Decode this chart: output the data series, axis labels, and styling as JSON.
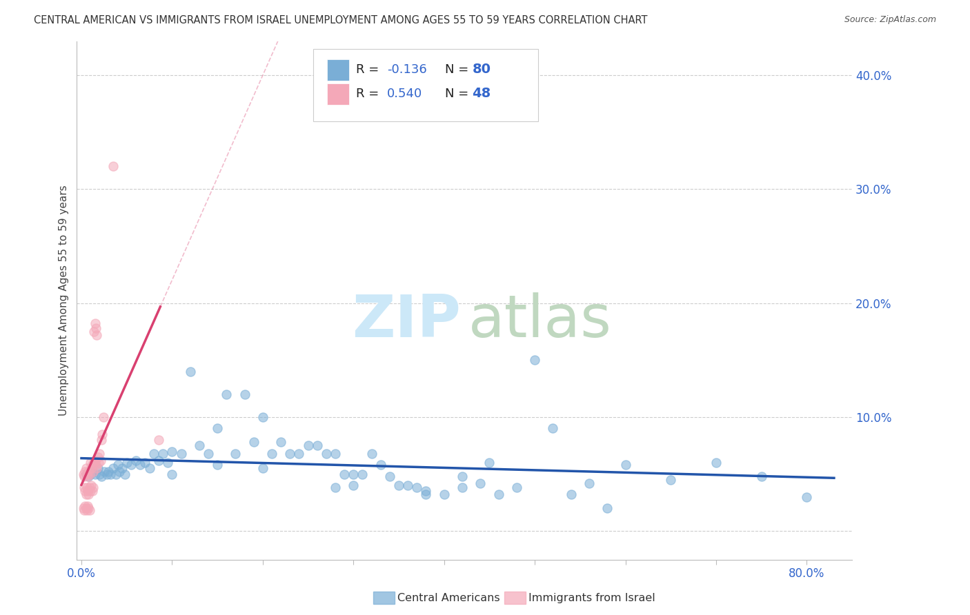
{
  "title": "CENTRAL AMERICAN VS IMMIGRANTS FROM ISRAEL UNEMPLOYMENT AMONG AGES 55 TO 59 YEARS CORRELATION CHART",
  "source": "Source: ZipAtlas.com",
  "ylabel": "Unemployment Among Ages 55 to 59 years",
  "xlim": [
    -0.005,
    0.85
  ],
  "ylim": [
    -0.025,
    0.43
  ],
  "xticks": [
    0.0,
    0.1,
    0.2,
    0.3,
    0.4,
    0.5,
    0.6,
    0.7,
    0.8
  ],
  "xticklabels": [
    "0.0%",
    "",
    "",
    "",
    "",
    "",
    "",
    "",
    "80.0%"
  ],
  "yticks": [
    0.0,
    0.1,
    0.2,
    0.3,
    0.4
  ],
  "yticklabels": [
    "",
    "10.0%",
    "20.0%",
    "30.0%",
    "40.0%"
  ],
  "grid_color": "#cccccc",
  "blue_color": "#7aaed6",
  "pink_color": "#f4a8b8",
  "blue_line_color": "#2255aa",
  "pink_line_color": "#d94070",
  "blue_R": -0.136,
  "blue_N": 80,
  "pink_R": 0.54,
  "pink_N": 48,
  "legend_label_blue": "Central Americans",
  "legend_label_pink": "Immigrants from Israel",
  "blue_scatter_x": [
    0.005,
    0.008,
    0.01,
    0.012,
    0.015,
    0.018,
    0.02,
    0.022,
    0.025,
    0.028,
    0.03,
    0.032,
    0.035,
    0.038,
    0.04,
    0.042,
    0.045,
    0.048,
    0.05,
    0.055,
    0.06,
    0.065,
    0.07,
    0.075,
    0.08,
    0.085,
    0.09,
    0.095,
    0.1,
    0.11,
    0.12,
    0.13,
    0.14,
    0.15,
    0.16,
    0.17,
    0.18,
    0.19,
    0.2,
    0.21,
    0.22,
    0.23,
    0.24,
    0.25,
    0.26,
    0.27,
    0.28,
    0.29,
    0.3,
    0.31,
    0.32,
    0.33,
    0.34,
    0.35,
    0.36,
    0.37,
    0.38,
    0.4,
    0.42,
    0.44,
    0.46,
    0.48,
    0.5,
    0.52,
    0.54,
    0.56,
    0.58,
    0.6,
    0.65,
    0.7,
    0.75,
    0.8,
    0.42,
    0.45,
    0.38,
    0.3,
    0.28,
    0.2,
    0.15,
    0.1
  ],
  "blue_scatter_y": [
    0.05,
    0.048,
    0.05,
    0.052,
    0.05,
    0.055,
    0.05,
    0.048,
    0.052,
    0.05,
    0.052,
    0.05,
    0.055,
    0.05,
    0.058,
    0.052,
    0.055,
    0.05,
    0.06,
    0.058,
    0.062,
    0.058,
    0.06,
    0.055,
    0.068,
    0.062,
    0.068,
    0.06,
    0.07,
    0.068,
    0.14,
    0.075,
    0.068,
    0.09,
    0.12,
    0.068,
    0.12,
    0.078,
    0.1,
    0.068,
    0.078,
    0.068,
    0.068,
    0.075,
    0.075,
    0.068,
    0.068,
    0.05,
    0.05,
    0.05,
    0.068,
    0.058,
    0.048,
    0.04,
    0.04,
    0.038,
    0.032,
    0.032,
    0.038,
    0.042,
    0.032,
    0.038,
    0.15,
    0.09,
    0.032,
    0.042,
    0.02,
    0.058,
    0.045,
    0.06,
    0.048,
    0.03,
    0.048,
    0.06,
    0.035,
    0.04,
    0.038,
    0.055,
    0.058,
    0.05
  ],
  "pink_scatter_x": [
    0.002,
    0.003,
    0.004,
    0.005,
    0.006,
    0.007,
    0.008,
    0.009,
    0.01,
    0.011,
    0.012,
    0.013,
    0.014,
    0.015,
    0.016,
    0.017,
    0.018,
    0.019,
    0.02,
    0.021,
    0.022,
    0.023,
    0.024,
    0.003,
    0.004,
    0.005,
    0.006,
    0.007,
    0.008,
    0.009,
    0.01,
    0.011,
    0.012,
    0.013,
    0.014,
    0.015,
    0.016,
    0.017,
    0.002,
    0.003,
    0.004,
    0.005,
    0.006,
    0.007,
    0.008,
    0.009,
    0.035,
    0.085
  ],
  "pink_scatter_y": [
    0.05,
    0.048,
    0.052,
    0.055,
    0.05,
    0.048,
    0.052,
    0.05,
    0.06,
    0.055,
    0.058,
    0.052,
    0.06,
    0.062,
    0.058,
    0.055,
    0.065,
    0.06,
    0.068,
    0.062,
    0.08,
    0.085,
    0.1,
    0.038,
    0.035,
    0.032,
    0.038,
    0.035,
    0.032,
    0.038,
    0.035,
    0.04,
    0.035,
    0.038,
    0.175,
    0.182,
    0.178,
    0.172,
    0.02,
    0.018,
    0.022,
    0.02,
    0.018,
    0.022,
    0.02,
    0.018,
    0.32,
    0.08
  ]
}
